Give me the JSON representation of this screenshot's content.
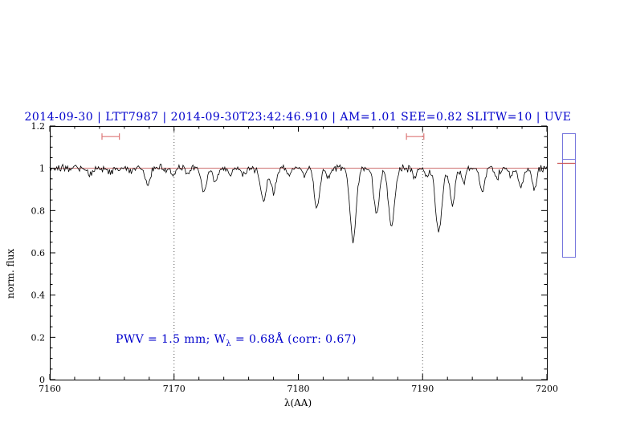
{
  "title": {
    "text": "2014-09-30 | LTT7987 | 2014-09-30T23:42:46.910 | AM=1.01 SEE=0.82 SLITW=10 | UVE",
    "color": "#0000cc"
  },
  "annotation": {
    "prefix": "PWV = 1.5 mm; W",
    "sub": "λ",
    "suffix": " = 0.68Å (corr: 0.67)",
    "color": "#0000cc",
    "x_data": 7165.4,
    "y_data": 0.18
  },
  "chart_data": {
    "type": "line",
    "title": "2014-09-30 | LTT7987 | 2014-09-30T23:42:46.910 | AM=1.01 SEE=0.82 SLITW=10 | UVE",
    "xlabel": "λ(AA)",
    "ylabel": "norm. flux",
    "xlim": [
      7160,
      7200
    ],
    "ylim": [
      0,
      1.2
    ],
    "xticks": [
      7160,
      7170,
      7180,
      7190,
      7200
    ],
    "yticks": [
      0,
      0.2,
      0.4,
      0.6,
      0.8,
      1,
      1.2
    ],
    "x_minor_step": 2,
    "y_minor_step": 0.05,
    "grid": false,
    "series": [
      {
        "name": "observed-telluric-spectrum",
        "color": "#000000",
        "style": "noisy-line",
        "continuum": 1.0,
        "noise_sigma": 0.008,
        "sample_step": 0.08,
        "absorption_lines": [
          [
            7163.2,
            0.03,
            0.15
          ],
          [
            7164.9,
            0.03,
            0.15
          ],
          [
            7166.6,
            0.02,
            0.15
          ],
          [
            7167.9,
            0.08,
            0.18
          ],
          [
            7169.9,
            0.04,
            0.15
          ],
          [
            7171.1,
            0.03,
            0.15
          ],
          [
            7172.4,
            0.11,
            0.2
          ],
          [
            7173.3,
            0.07,
            0.18
          ],
          [
            7174.5,
            0.04,
            0.15
          ],
          [
            7175.6,
            0.03,
            0.15
          ],
          [
            7177.2,
            0.16,
            0.22
          ],
          [
            7178.0,
            0.12,
            0.2
          ],
          [
            7179.2,
            0.04,
            0.15
          ],
          [
            7180.5,
            0.03,
            0.15
          ],
          [
            7181.5,
            0.19,
            0.22
          ],
          [
            7182.4,
            0.05,
            0.15
          ],
          [
            7184.4,
            0.34,
            0.25
          ],
          [
            7186.3,
            0.21,
            0.22
          ],
          [
            7187.5,
            0.28,
            0.24
          ],
          [
            7189.4,
            0.05,
            0.15
          ],
          [
            7190.3,
            0.04,
            0.15
          ],
          [
            7191.3,
            0.3,
            0.25
          ],
          [
            7192.4,
            0.17,
            0.2
          ],
          [
            7193.3,
            0.06,
            0.15
          ],
          [
            7194.8,
            0.12,
            0.2
          ],
          [
            7196.0,
            0.05,
            0.15
          ],
          [
            7197.1,
            0.04,
            0.15
          ],
          [
            7197.9,
            0.09,
            0.18
          ],
          [
            7199.0,
            0.1,
            0.18
          ]
        ]
      },
      {
        "name": "continuum-fit",
        "color": "#cc6666",
        "style": "horizontal-line",
        "y": 1.0
      }
    ],
    "vlines": {
      "x": [
        7170,
        7190
      ],
      "style": "dotted",
      "color": "#555555"
    },
    "range_markers": {
      "y": 1.15,
      "color": "#dd7777",
      "ranges": [
        [
          7164.2,
          7165.6
        ],
        [
          7188.7,
          7190.1
        ]
      ]
    },
    "annotation": "PWV = 1.5 mm; Wλ = 0.68Å (corr: 0.67)",
    "legend": "none"
  },
  "side_gauge": {
    "border_color": "#7777dd",
    "blue_line_color": "#7777dd",
    "red_line_color": "#cc5555"
  }
}
